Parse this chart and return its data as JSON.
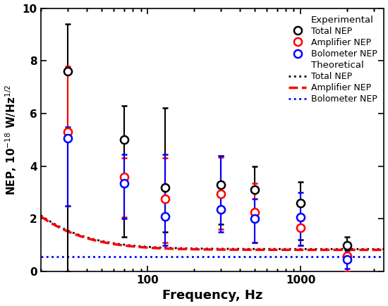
{
  "title": "",
  "xlabel": "Frequency, Hz",
  "ylabel": "NEP, 10$^{-18}$ W/Hz$^{1/2}$",
  "xlim": [
    20,
    3500
  ],
  "ylim": [
    0,
    10
  ],
  "yticks": [
    0,
    2,
    4,
    6,
    8,
    10
  ],
  "exp_total_freq": [
    30,
    70,
    130,
    300,
    500,
    1000,
    2000
  ],
  "exp_total_val": [
    7.6,
    5.0,
    3.2,
    3.3,
    3.1,
    2.6,
    1.0
  ],
  "exp_total_err_lo": [
    7.6,
    3.7,
    1.7,
    1.5,
    1.2,
    1.4,
    0.2
  ],
  "exp_total_err_hi": [
    1.8,
    1.3,
    3.0,
    1.1,
    0.9,
    0.8,
    0.3
  ],
  "exp_amp_freq": [
    30,
    70,
    130,
    300,
    500,
    1000,
    2000
  ],
  "exp_amp_val": [
    5.3,
    3.6,
    2.75,
    2.95,
    2.25,
    1.65,
    0.6
  ],
  "exp_amp_err_lo": [
    2.8,
    1.55,
    1.65,
    1.35,
    1.15,
    0.65,
    0.6
  ],
  "exp_amp_err_hi": [
    2.5,
    0.7,
    1.55,
    1.4,
    1.1,
    0.35,
    0.35
  ],
  "exp_bolo_freq": [
    30,
    70,
    130,
    300,
    500,
    1000,
    2000
  ],
  "exp_bolo_val": [
    5.05,
    3.35,
    2.1,
    2.35,
    2.0,
    2.05,
    0.45
  ],
  "exp_bolo_err_lo": [
    2.55,
    1.35,
    1.1,
    0.85,
    0.9,
    1.05,
    0.35
  ],
  "exp_bolo_err_hi": [
    0.45,
    1.1,
    2.35,
    2.05,
    0.75,
    0.95,
    0.55
  ],
  "theo_freq_start": 20,
  "theo_freq_end": 3500,
  "theo_total_hi": 0.85,
  "theo_total_B": 39.1,
  "theo_amp_hi": 0.82,
  "theo_amp_B": 38.5,
  "theo_bolo_val": 0.55,
  "color_black": "#000000",
  "color_red": "#ff0000",
  "color_blue": "#0000ff",
  "bg_color": "#ffffff",
  "marker_size": 8,
  "lw_theo": 2.0,
  "lw_amp": 2.5
}
